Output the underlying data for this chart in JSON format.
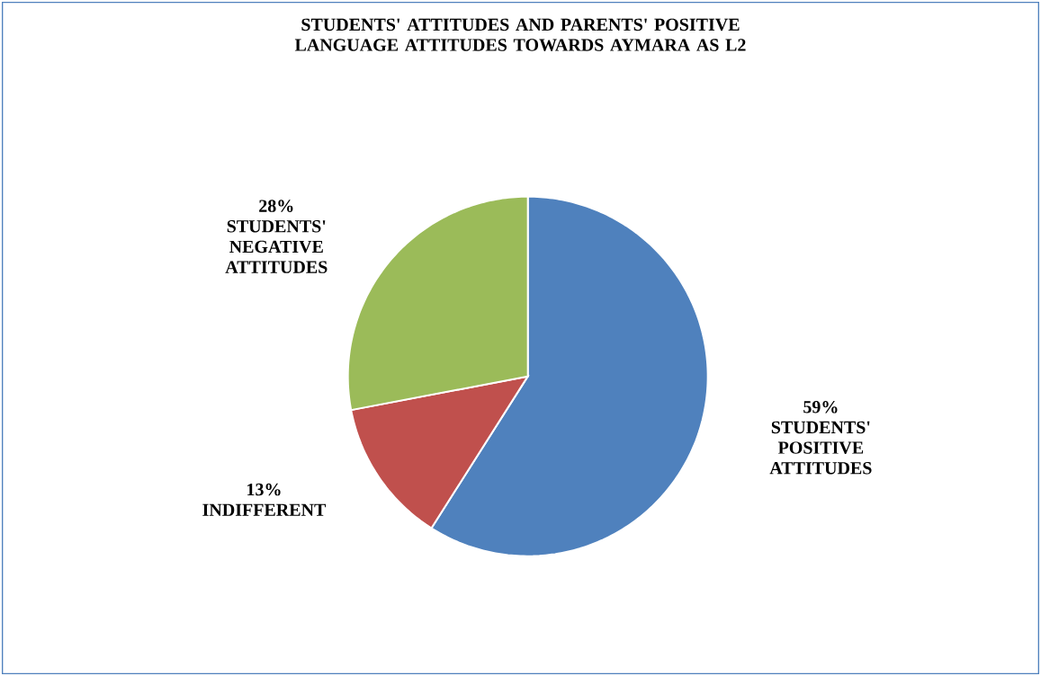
{
  "chart_data": {
    "type": "pie",
    "title": "STUDENTS' ATTITUDES AND PARENTS' POSITIVE LANGUAGE ATTITUDES TOWARDS AYMARA AS L2",
    "categories": [
      "STUDENTS' POSITIVE ATTITUDES",
      "INDIFFERENT",
      "STUDENTS' NEGATIVE ATTITUDES"
    ],
    "values": [
      59,
      13,
      28
    ],
    "value_labels": [
      "59%",
      "13%",
      "28%"
    ],
    "colors": [
      "#4f81bd",
      "#c0504d",
      "#9bbb59"
    ]
  }
}
